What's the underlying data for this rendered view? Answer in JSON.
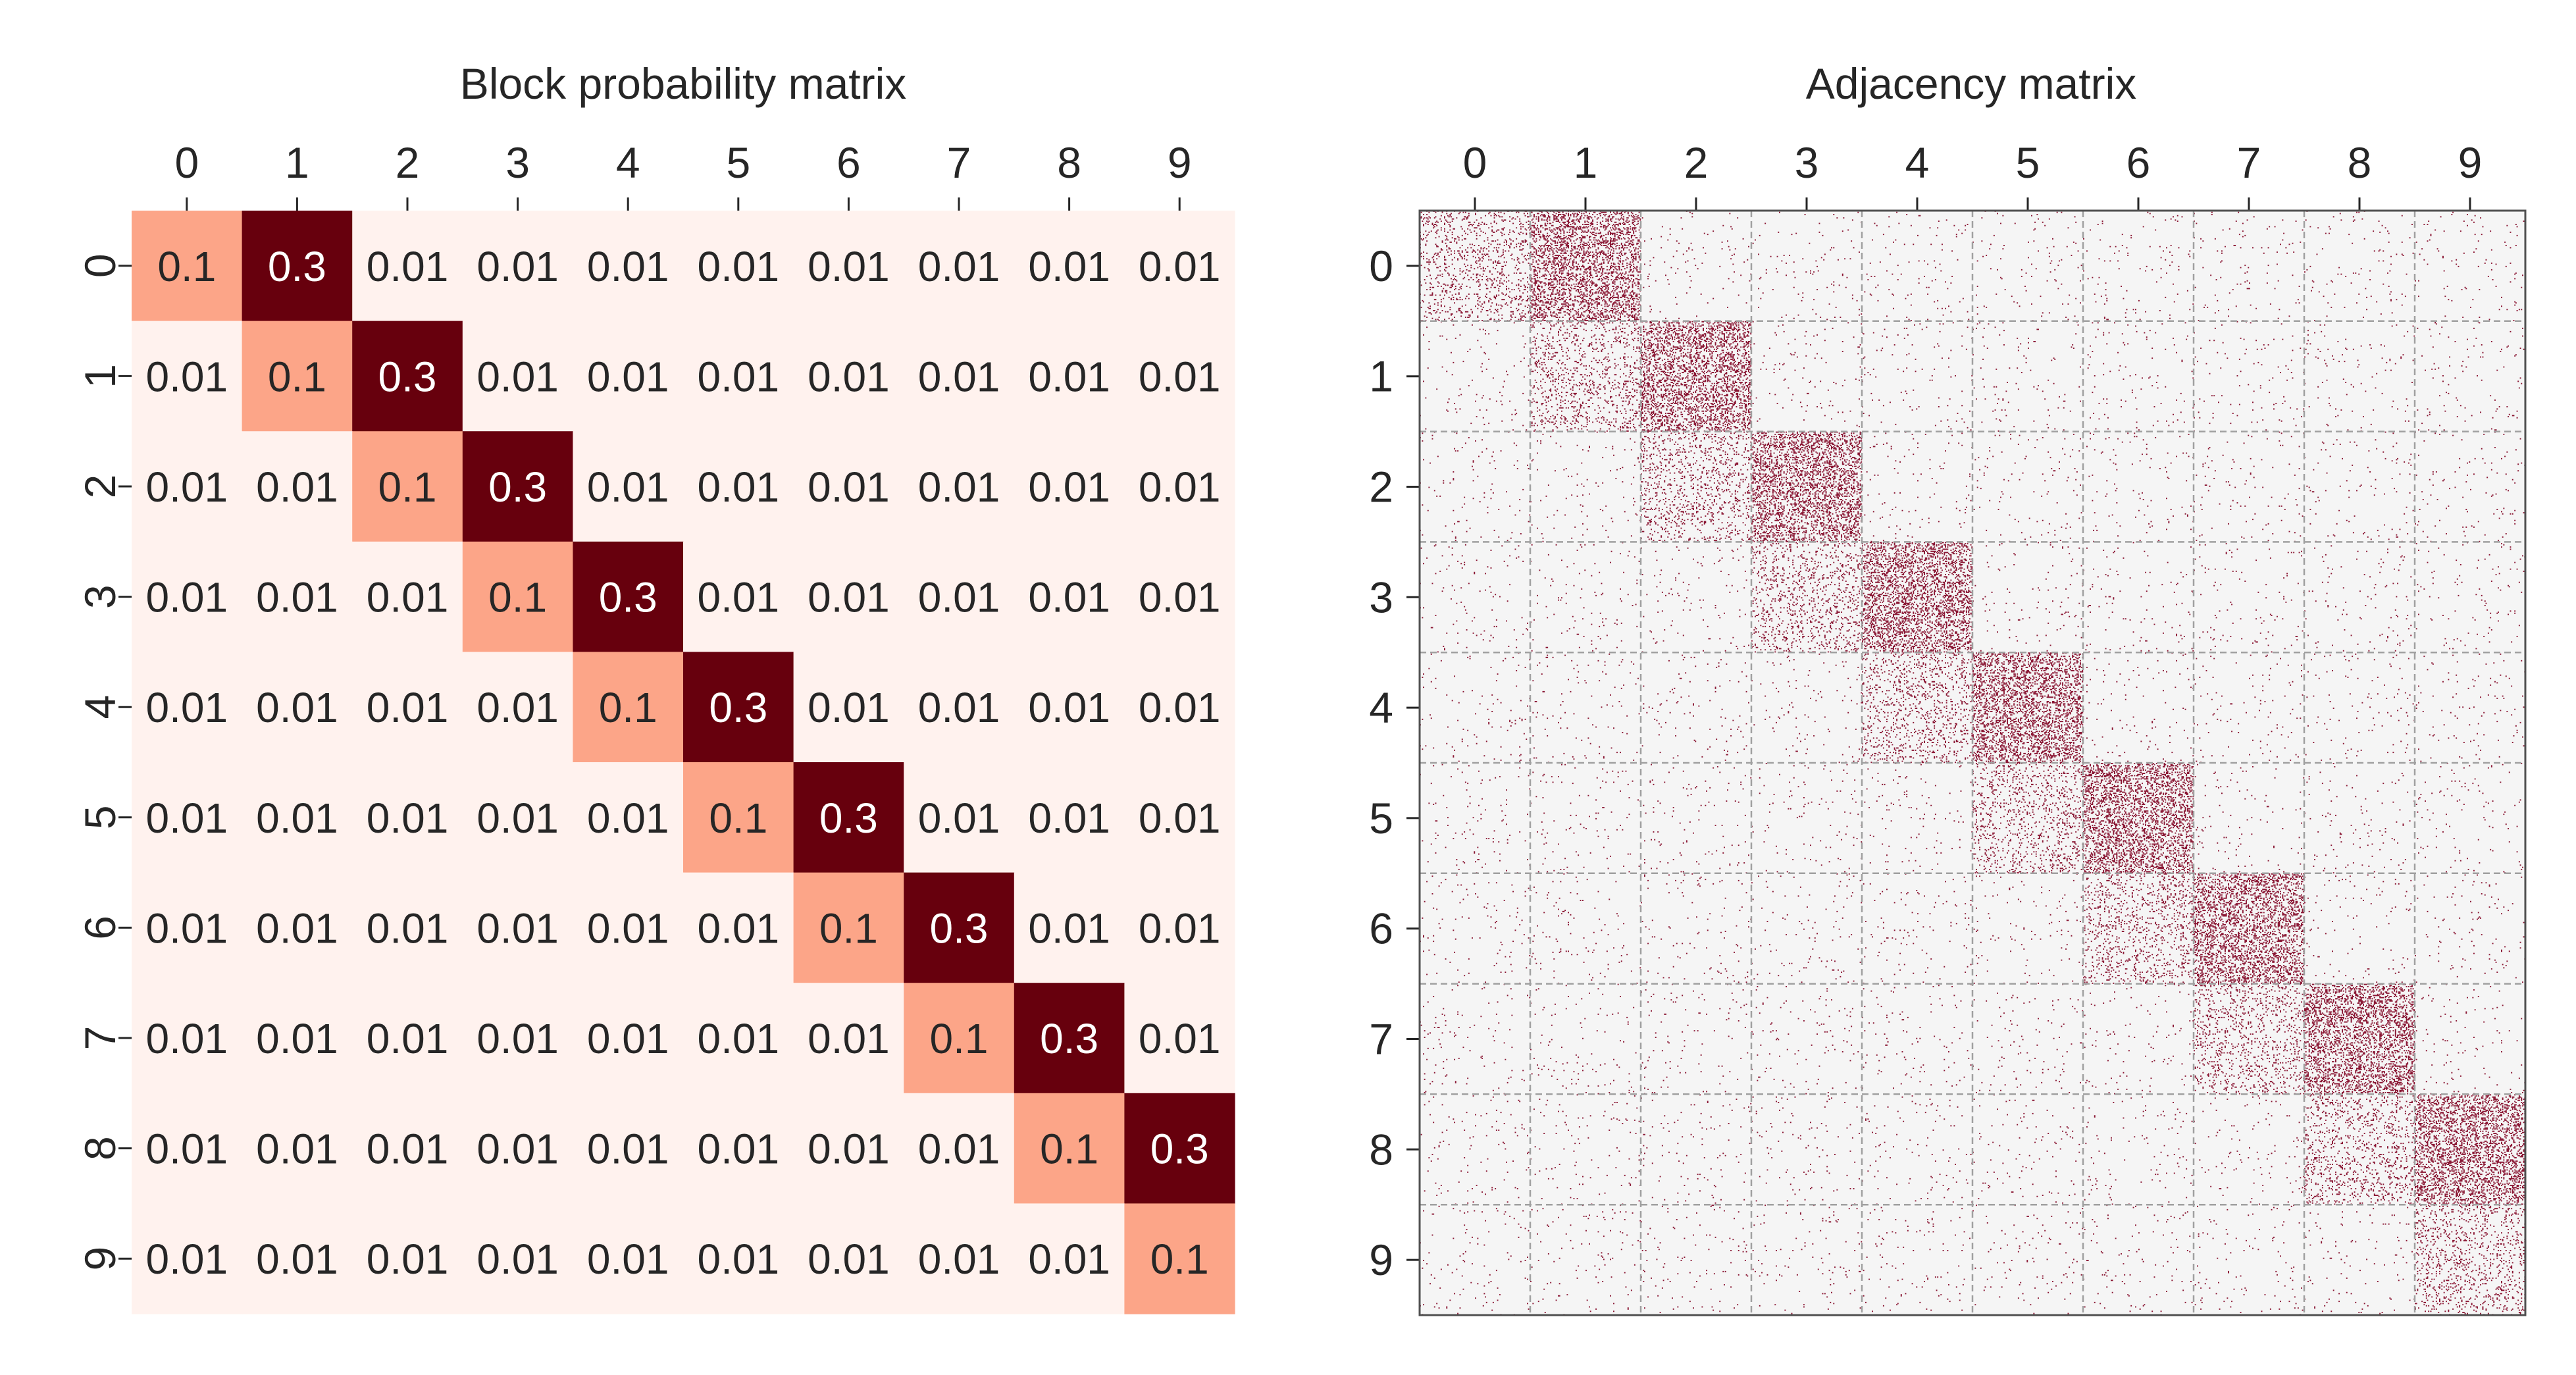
{
  "chart_data": [
    {
      "type": "heatmap",
      "title": "Block probability matrix",
      "x_categories": [
        "0",
        "1",
        "2",
        "3",
        "4",
        "5",
        "6",
        "7",
        "8",
        "9"
      ],
      "y_categories": [
        "0",
        "1",
        "2",
        "3",
        "4",
        "5",
        "6",
        "7",
        "8",
        "9"
      ],
      "x_axis_position": "top",
      "colormap": "Reds",
      "value_range": [
        0,
        0.3
      ],
      "annotated": true,
      "cell_text_colors": {
        "dark": "#262626",
        "light": "#ffffff"
      },
      "values": [
        [
          0.1,
          0.3,
          0.01,
          0.01,
          0.01,
          0.01,
          0.01,
          0.01,
          0.01,
          0.01
        ],
        [
          0.01,
          0.1,
          0.3,
          0.01,
          0.01,
          0.01,
          0.01,
          0.01,
          0.01,
          0.01
        ],
        [
          0.01,
          0.01,
          0.1,
          0.3,
          0.01,
          0.01,
          0.01,
          0.01,
          0.01,
          0.01
        ],
        [
          0.01,
          0.01,
          0.01,
          0.1,
          0.3,
          0.01,
          0.01,
          0.01,
          0.01,
          0.01
        ],
        [
          0.01,
          0.01,
          0.01,
          0.01,
          0.1,
          0.3,
          0.01,
          0.01,
          0.01,
          0.01
        ],
        [
          0.01,
          0.01,
          0.01,
          0.01,
          0.01,
          0.1,
          0.3,
          0.01,
          0.01,
          0.01
        ],
        [
          0.01,
          0.01,
          0.01,
          0.01,
          0.01,
          0.01,
          0.1,
          0.3,
          0.01,
          0.01
        ],
        [
          0.01,
          0.01,
          0.01,
          0.01,
          0.01,
          0.01,
          0.01,
          0.1,
          0.3,
          0.01
        ],
        [
          0.01,
          0.01,
          0.01,
          0.01,
          0.01,
          0.01,
          0.01,
          0.01,
          0.1,
          0.3
        ],
        [
          0.01,
          0.01,
          0.01,
          0.01,
          0.01,
          0.01,
          0.01,
          0.01,
          0.01,
          0.1
        ]
      ],
      "cell_colors": {
        "0.01": "#fff2ee",
        "0.1": "#fca588",
        "0.3": "#67000d"
      }
    },
    {
      "type": "heatmap",
      "title": "Adjacency matrix",
      "x_categories": [
        "0",
        "1",
        "2",
        "3",
        "4",
        "5",
        "6",
        "7",
        "8",
        "9"
      ],
      "y_categories": [
        "0",
        "1",
        "2",
        "3",
        "4",
        "5",
        "6",
        "7",
        "8",
        "9"
      ],
      "x_axis_position": "top",
      "rendering": "binary adjacency matrix shown as scattered dots, 10 equal blocks per axis",
      "nodes_per_block": 100,
      "edge_probability_by_block": [
        [
          0.1,
          0.3,
          0.01,
          0.01,
          0.01,
          0.01,
          0.01,
          0.01,
          0.01,
          0.01
        ],
        [
          0.01,
          0.1,
          0.3,
          0.01,
          0.01,
          0.01,
          0.01,
          0.01,
          0.01,
          0.01
        ],
        [
          0.01,
          0.01,
          0.1,
          0.3,
          0.01,
          0.01,
          0.01,
          0.01,
          0.01,
          0.01
        ],
        [
          0.01,
          0.01,
          0.01,
          0.1,
          0.3,
          0.01,
          0.01,
          0.01,
          0.01,
          0.01
        ],
        [
          0.01,
          0.01,
          0.01,
          0.01,
          0.1,
          0.3,
          0.01,
          0.01,
          0.01,
          0.01
        ],
        [
          0.01,
          0.01,
          0.01,
          0.01,
          0.01,
          0.1,
          0.3,
          0.01,
          0.01,
          0.01
        ],
        [
          0.01,
          0.01,
          0.01,
          0.01,
          0.01,
          0.01,
          0.1,
          0.3,
          0.01,
          0.01
        ],
        [
          0.01,
          0.01,
          0.01,
          0.01,
          0.01,
          0.01,
          0.01,
          0.1,
          0.3,
          0.01
        ],
        [
          0.01,
          0.01,
          0.01,
          0.01,
          0.01,
          0.01,
          0.01,
          0.01,
          0.1,
          0.3
        ],
        [
          0.01,
          0.01,
          0.01,
          0.01,
          0.01,
          0.01,
          0.01,
          0.01,
          0.01,
          0.1
        ]
      ],
      "colors": {
        "background": "#f5f5f5",
        "edge": "#800020",
        "grid": "#a0a0a0",
        "frame": "#505050"
      },
      "block_grid": "dashed"
    }
  ]
}
